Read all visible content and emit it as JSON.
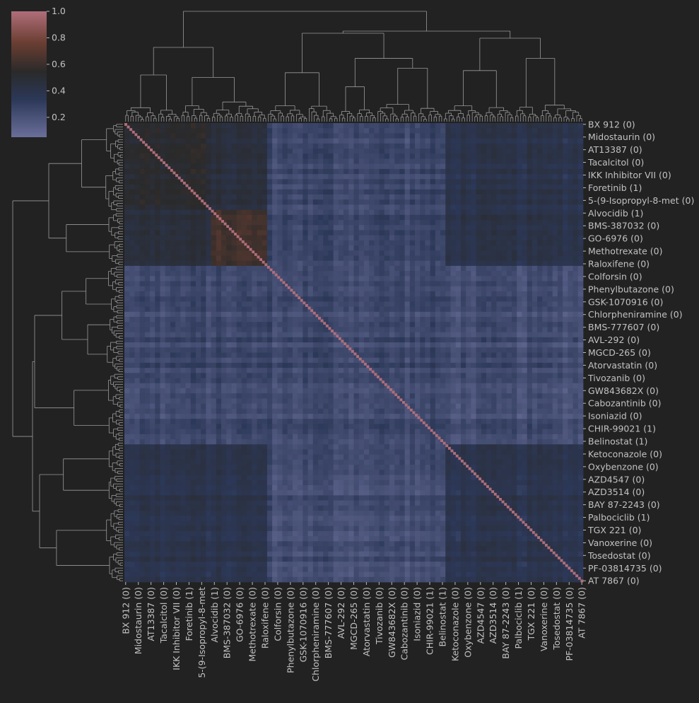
{
  "chart_data": {
    "type": "heatmap",
    "title": "",
    "xlabel": "",
    "ylabel": "",
    "colorbar": {
      "range": [
        0.05,
        1.0
      ],
      "ticks": [
        0.2,
        0.4,
        0.6,
        0.8,
        1.0
      ],
      "tick_labels": [
        "0.2",
        "0.4",
        "0.6",
        "0.8",
        "1.0"
      ],
      "colors": [
        "#6a6f9a",
        "#2c3858",
        "#2a2a2a",
        "#6a3e32",
        "#b06e7a"
      ]
    },
    "background_color": "#222222",
    "n_rows": 180,
    "n_cols": 180,
    "labels": [
      "BX 912 (0)",
      "Midostaurin (0)",
      "AT13387 (0)",
      "Tacalcitol (0)",
      "IKK Inhibitor VII (0)",
      "Foretinib (1)",
      "5-(9-Isopropyl-8-met (0)",
      "Alvocidib (1)",
      "BMS-387032 (0)",
      "GO-6976 (0)",
      "Methotrexate (0)",
      "Raloxifene (0)",
      "Colforsin (0)",
      "Phenylbutazone (0)",
      "GSK-1070916 (0)",
      "Chlorpheniramine (0)",
      "BMS-777607 (0)",
      "AVL-292 (0)",
      "MGCD-265 (0)",
      "Atorvastatin (0)",
      "Tivozanib (0)",
      "GW843682X (0)",
      "Cabozantinib (0)",
      "Isoniazid (0)",
      "CHIR-99021 (1)",
      "Belinostat (1)",
      "Ketoconazole (0)",
      "Oxybenzone (0)",
      "AZD4547 (0)",
      "AZD3514 (0)",
      "BAY 87-2243 (0)",
      "Palbociclib (1)",
      "TGX 221 (0)",
      "Vanoxerine (0)",
      "Tosedostat (0)",
      "PF-03814735 (0)",
      "AT 7867 (0)"
    ],
    "x_tick_labels": [
      "BX 912 (0)",
      "Midostaurin (0)",
      "AT13387 (0)",
      "Tacalcitol (0)",
      "IKK Inhibitor VII (0)",
      "Foretinib (1)",
      "5-(9-Isopropyl-8-met",
      "Alvocidib (1)",
      "BMS-387032 (0)",
      "GO-6976 (0)",
      "Methotrexate (0)",
      "Raloxifene (0)",
      "Colforsin (0)",
      "Phenylbutazone (0)",
      "GSK-1070916 (0)",
      "Chlorpheniramine (0)",
      "BMS-777607 (0)",
      "AVL-292 (0)",
      "MGCD-265 (0)",
      "Atorvastatin (0)",
      "Tivozanib (0)",
      "GW843682X (0)",
      "Cabozantinib (0)",
      "Isoniazid (0)",
      "CHIR-99021 (1)",
      "Belinostat (1)",
      "Ketoconazole (0)",
      "Oxybenzone (0)",
      "AZD4547 (0)",
      "AZD3514 (0)",
      "BAY 87-2243 (0)",
      "Palbociclib (1)",
      "TGX 221 (0)",
      "Vanoxerine (0)",
      "Tosedostat (0)",
      "PF-03814735 (0)",
      "AT 7867 (0)"
    ],
    "diagonal_value": 1.0,
    "blocks": [
      {
        "rows": [
          0,
          32
        ],
        "cols": [
          0,
          32
        ],
        "value": 0.5
      },
      {
        "rows": [
          33,
          55
        ],
        "cols": [
          33,
          55
        ],
        "value": 0.6
      },
      {
        "rows": [
          0,
          55
        ],
        "cols": [
          0,
          55
        ],
        "value": 0.42
      },
      {
        "rows": [
          56,
          124
        ],
        "cols": [
          56,
          124
        ],
        "value": 0.22
      },
      {
        "rows": [
          125,
          179
        ],
        "cols": [
          125,
          179
        ],
        "value": 0.34
      },
      {
        "rows": [
          0,
          55
        ],
        "cols": [
          125,
          179
        ],
        "value": 0.35
      },
      {
        "rows": [
          0,
          55
        ],
        "cols": [
          56,
          124
        ],
        "value": 0.22
      },
      {
        "rows": [
          56,
          124
        ],
        "cols": [
          125,
          179
        ],
        "value": 0.2
      }
    ],
    "dendrogram": true,
    "grid": false,
    "legend": "top-left colorbar"
  }
}
